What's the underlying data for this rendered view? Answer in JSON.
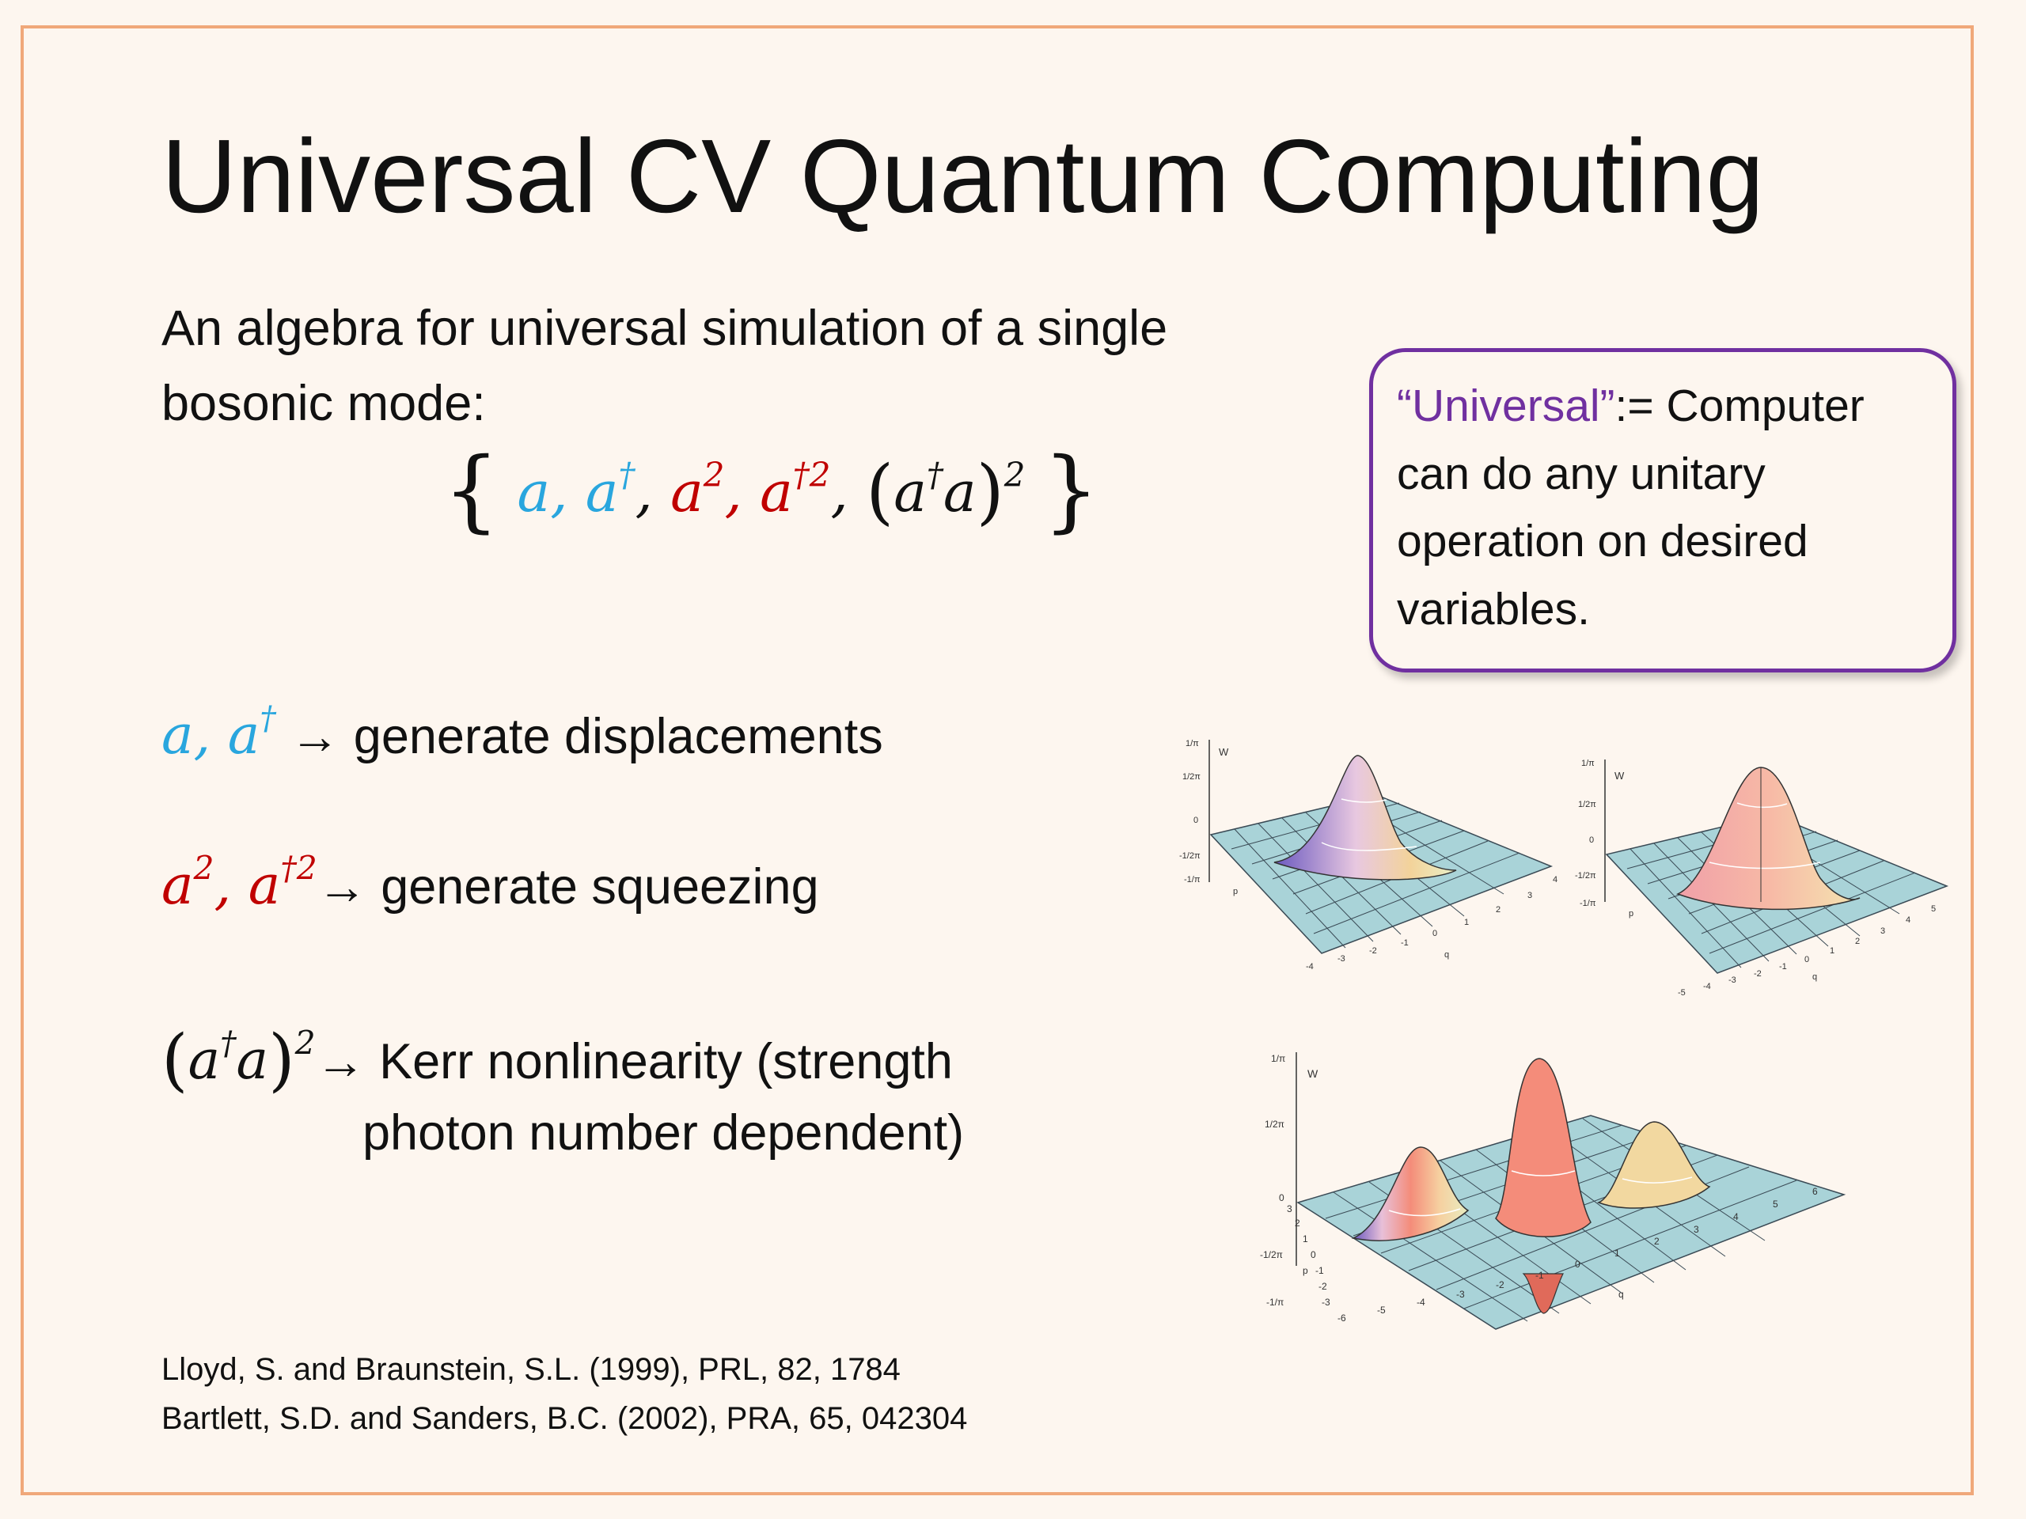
{
  "title": "Universal CV Quantum Computing",
  "intro": "An algebra for universal simulation of a single bosonic mode:",
  "algebra": {
    "a": "a",
    "sep": ",",
    "dagger": "†",
    "two": "2",
    "dagger_two": "†2",
    "open_brace": "{",
    "close_brace": "}",
    "open_paren": "(",
    "close_paren": ")"
  },
  "rows": {
    "displacements": {
      "text": "generate displacements"
    },
    "squeezing": {
      "text": "generate squeezing"
    },
    "kerr": {
      "text": "Kerr nonlinearity (strength",
      "text_line2": "photon number dependent)"
    },
    "arrow": "→"
  },
  "callout": {
    "quote": "“Universal”",
    "rest": ":= Computer can do any unitary operation on desired variables."
  },
  "references": [
    "Lloyd, S. and Braunstein, S.L. (1999), PRL, 82, 1784",
    "Bartlett, S.D. and Sanders, B.C. (2002), PRA, 65, 042304"
  ],
  "plots": {
    "axis_w": "W",
    "axis_p": "p",
    "axis_q": "q",
    "y_ticks": [
      "1/π",
      "1/2π",
      "0",
      "-1/2π",
      "-1/π"
    ],
    "plot1_q_ticks": [
      "-4",
      "-3",
      "-2",
      "-1",
      "0",
      "1",
      "2",
      "3",
      "4"
    ],
    "plot2_q_ticks": [
      "-5",
      "-4",
      "-3",
      "-2",
      "-1",
      "0",
      "1",
      "2",
      "3",
      "4",
      "5"
    ],
    "plot3_q_ticks": [
      "-6",
      "-5",
      "-4",
      "-3",
      "-2",
      "-1",
      "0",
      "1",
      "2",
      "3",
      "4",
      "5",
      "6"
    ],
    "p_ticks": [
      "3",
      "2",
      "1",
      "0",
      "-1",
      "-2",
      "-3"
    ],
    "colors": {
      "grid_fill": "#a9d3d8",
      "grid_line": "#3a4a55",
      "peak_warm": "#f08c7a",
      "peak_cool": "#7a68c8"
    }
  }
}
